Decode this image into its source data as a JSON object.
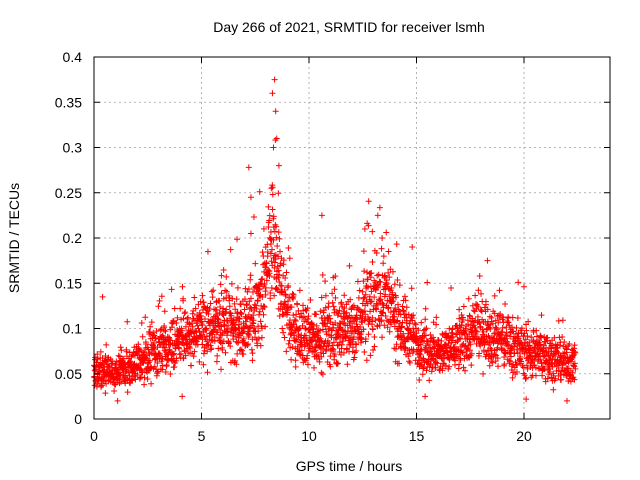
{
  "chart_data": {
    "type": "scatter",
    "title": "Day 266 of 2021, SRMTID for receiver lsmh",
    "xlabel": "GPS time / hours",
    "ylabel": "SRMTID / TECUs",
    "xlim": [
      0,
      24
    ],
    "ylim": [
      0,
      0.4
    ],
    "x_ticks": [
      "0",
      "5",
      "10",
      "15",
      "20"
    ],
    "y_ticks": [
      "0",
      "0.05",
      "0.1",
      "0.15",
      "0.2",
      "0.25",
      "0.3",
      "0.35",
      "0.4"
    ],
    "grid": true,
    "marker": "+",
    "marker_color": "#ff0000",
    "series": [
      {
        "name": "SRMTID",
        "envelope_hours": [
          0,
          1,
          2,
          3,
          4,
          5,
          6,
          7,
          7.5,
          8,
          8.3,
          8.6,
          9,
          9.5,
          10,
          11,
          12,
          13,
          13.5,
          14,
          15,
          16,
          17,
          18,
          19,
          20,
          21,
          22,
          22.4
        ],
        "envelope_mean": [
          0.055,
          0.05,
          0.06,
          0.075,
          0.085,
          0.1,
          0.105,
          0.1,
          0.11,
          0.15,
          0.2,
          0.15,
          0.12,
          0.09,
          0.09,
          0.095,
          0.1,
          0.13,
          0.14,
          0.11,
          0.085,
          0.07,
          0.085,
          0.1,
          0.09,
          0.075,
          0.07,
          0.06,
          0.065
        ],
        "peaks": [
          {
            "x": 8.4,
            "y": 0.375
          },
          {
            "x": 8.3,
            "y": 0.36
          },
          {
            "x": 8.45,
            "y": 0.34
          },
          {
            "x": 8.5,
            "y": 0.31
          },
          {
            "x": 8.35,
            "y": 0.3
          },
          {
            "x": 8.6,
            "y": 0.28
          },
          {
            "x": 7.2,
            "y": 0.278
          },
          {
            "x": 8.25,
            "y": 0.255
          },
          {
            "x": 7.3,
            "y": 0.245
          },
          {
            "x": 13.2,
            "y": 0.225
          },
          {
            "x": 10.6,
            "y": 0.225
          },
          {
            "x": 12.6,
            "y": 0.21
          },
          {
            "x": 7.3,
            "y": 0.205
          },
          {
            "x": 13.4,
            "y": 0.2
          },
          {
            "x": 14.8,
            "y": 0.19
          },
          {
            "x": 5.3,
            "y": 0.185
          },
          {
            "x": 18.3,
            "y": 0.175
          },
          {
            "x": 0.4,
            "y": 0.135
          },
          {
            "x": 1.1,
            "y": 0.02
          },
          {
            "x": 4.1,
            "y": 0.025
          },
          {
            "x": 20.1,
            "y": 0.022
          },
          {
            "x": 22.0,
            "y": 0.02
          },
          {
            "x": 15.4,
            "y": 0.025
          }
        ]
      }
    ]
  }
}
